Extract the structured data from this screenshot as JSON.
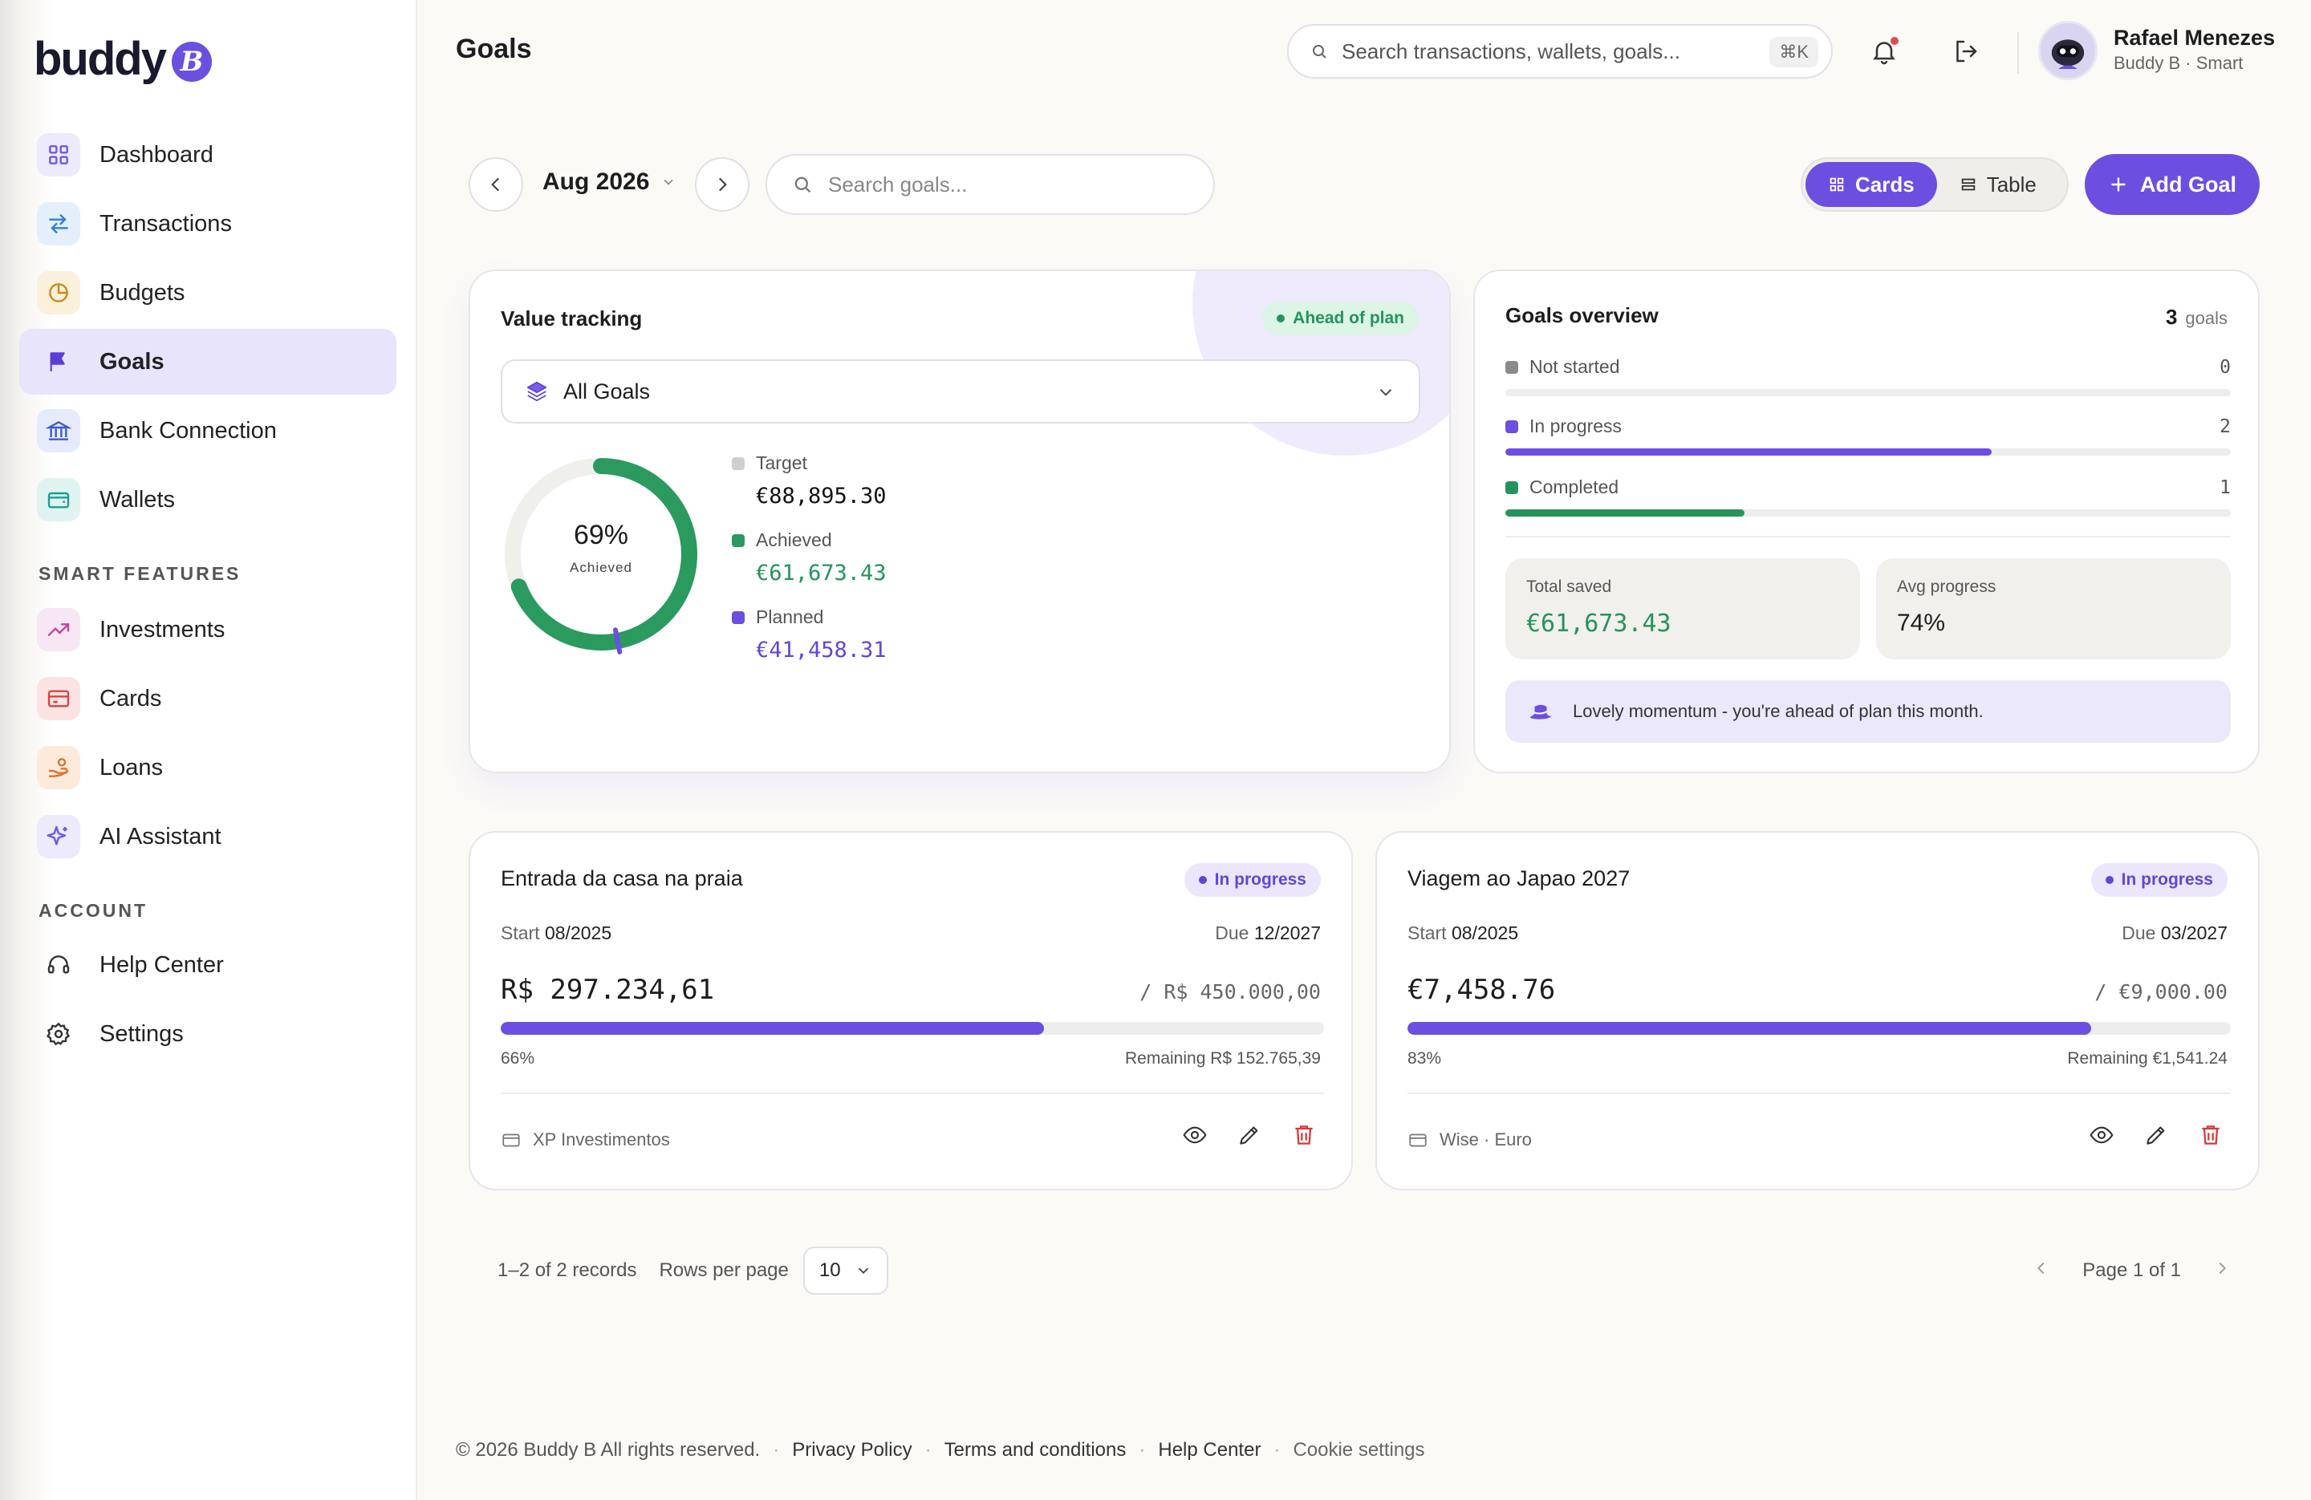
{
  "brand": {
    "name": "buddy",
    "badge": "B",
    "accent": "#6c4ee0"
  },
  "sidebar": {
    "main": [
      {
        "label": "Dashboard",
        "icon": "grid-icon"
      },
      {
        "label": "Transactions",
        "icon": "arrows-swap-icon"
      },
      {
        "label": "Budgets",
        "icon": "pie-chart-icon"
      },
      {
        "label": "Goals",
        "icon": "flag-icon",
        "active": true
      },
      {
        "label": "Bank Connection",
        "icon": "bank-icon"
      },
      {
        "label": "Wallets",
        "icon": "wallet-icon"
      }
    ],
    "smart_label": "SMART FEATURES",
    "smart": [
      {
        "label": "Investments",
        "icon": "trending-up-icon"
      },
      {
        "label": "Cards",
        "icon": "credit-card-icon"
      },
      {
        "label": "Loans",
        "icon": "hand-coins-icon"
      },
      {
        "label": "AI Assistant",
        "icon": "sparkles-icon"
      }
    ],
    "account_label": "ACCOUNT",
    "account": [
      {
        "label": "Help Center",
        "icon": "headset-icon"
      },
      {
        "label": "Settings",
        "icon": "gear-icon"
      }
    ]
  },
  "header": {
    "title": "Goals",
    "search_placeholder": "Search transactions, wallets, goals...",
    "shortcut": "⌘K",
    "user_name": "Rafael Menezes",
    "user_sub": "Buddy B · Smart"
  },
  "toolbar": {
    "month": "Aug 2026",
    "search_placeholder": "Search goals...",
    "view_cards": "Cards",
    "view_table": "Table",
    "add_goal": "Add Goal"
  },
  "value_tracking": {
    "title": "Value tracking",
    "badge": "Ahead of plan",
    "filter": "All Goals",
    "percent": "69%",
    "percent_value": 69,
    "percent_label": "Achieved",
    "planned_percent": 47,
    "target_label": "Target",
    "target_value": "€88,895.30",
    "achieved_label": "Achieved",
    "achieved_value": "€61,673.43",
    "planned_label": "Planned",
    "planned_value": "€41,458.31"
  },
  "overview": {
    "title": "Goals overview",
    "count": "3",
    "count_label": "goals",
    "rows": [
      {
        "label": "Not started",
        "value": "0",
        "fraction": 0,
        "color": "#8a8a8a"
      },
      {
        "label": "In progress",
        "value": "2",
        "fraction": 0.67,
        "color": "#6c4ee0"
      },
      {
        "label": "Completed",
        "value": "1",
        "fraction": 0.33,
        "color": "#24945a"
      }
    ],
    "total_saved_label": "Total saved",
    "total_saved": "€61,673.43",
    "avg_progress_label": "Avg progress",
    "avg_progress": "74%",
    "momentum": "Lovely momentum - you're ahead of plan this month."
  },
  "goals": [
    {
      "title": "Entrada da casa na praia",
      "status": "In progress",
      "start_label": "Start",
      "start": "08/2025",
      "due_label": "Due",
      "due": "12/2027",
      "amount": "R$ 297.234,61",
      "target": "/ R$ 450.000,00",
      "progress": 66,
      "percent": "66%",
      "remaining": "Remaining R$ 152.765,39",
      "wallet": "XP Investimentos"
    },
    {
      "title": "Viagem ao Japao 2027",
      "status": "In progress",
      "start_label": "Start",
      "start": "08/2025",
      "due_label": "Due",
      "due": "03/2027",
      "amount": "€7,458.76",
      "target": "/ €9,000.00",
      "progress": 83,
      "percent": "83%",
      "remaining": "Remaining €1,541.24",
      "wallet": "Wise · Euro"
    }
  ],
  "pager": {
    "records": "1–2 of 2 records",
    "rows_label": "Rows per page",
    "rows_value": "10",
    "page": "Page 1 of 1"
  },
  "footer": {
    "copyright": "© 2026 Buddy B All rights reserved.",
    "links": [
      "Privacy Policy",
      "Terms and conditions",
      "Help Center",
      "Cookie settings"
    ]
  }
}
